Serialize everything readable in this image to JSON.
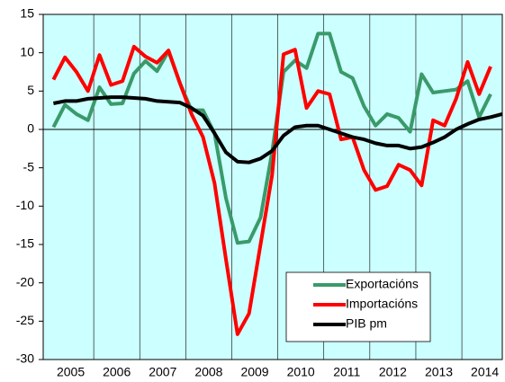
{
  "chart_data": {
    "type": "line",
    "categories": [
      null,
      "2005",
      null,
      null,
      null,
      "2006",
      null,
      null,
      null,
      "2007",
      null,
      null,
      null,
      "2008",
      null,
      null,
      null,
      "2009",
      null,
      null,
      null,
      "2010",
      null,
      null,
      null,
      "2011",
      null,
      null,
      null,
      "2012",
      null,
      null,
      null,
      "2013",
      null,
      null,
      null,
      "2014",
      null,
      null
    ],
    "series": [
      {
        "name": "Exportacións",
        "color": "#3a9a6a",
        "values": [
          0.3,
          3.2,
          2.0,
          1.2,
          5.5,
          3.3,
          3.4,
          7.3,
          8.9,
          7.6,
          10.2,
          6.0,
          2.5,
          2.5,
          -0.5,
          -9.0,
          -14.8,
          -14.6,
          -11.5,
          -3.0,
          7.5,
          9.0,
          8.0,
          12.5,
          12.5,
          7.5,
          6.7,
          3.0,
          0.5,
          2.0,
          1.5,
          -0.3,
          7.2,
          4.8,
          5.0,
          5.2,
          6.3,
          1.6,
          4.6,
          null
        ]
      },
      {
        "name": "Importacións",
        "color": "#ff0000",
        "values": [
          6.5,
          9.4,
          7.5,
          5.0,
          9.7,
          5.8,
          6.3,
          10.8,
          9.5,
          8.7,
          10.3,
          6.0,
          2.0,
          -1.0,
          -7.0,
          -17.0,
          -26.7,
          -24.0,
          -15.0,
          -6.0,
          9.8,
          10.4,
          2.8,
          5.0,
          4.6,
          -1.3,
          -1.0,
          -5.3,
          -7.9,
          -7.4,
          -4.6,
          -5.3,
          -7.3,
          1.2,
          0.5,
          4.0,
          8.8,
          4.6,
          8.2,
          null
        ]
      },
      {
        "name": "PIB pm",
        "color": "#000000",
        "values": [
          3.4,
          3.7,
          3.7,
          4.0,
          4.1,
          4.2,
          4.2,
          4.1,
          4.0,
          3.7,
          3.6,
          3.5,
          2.8,
          1.8,
          -0.5,
          -3.0,
          -4.2,
          -4.3,
          -3.8,
          -2.8,
          -0.8,
          0.3,
          0.5,
          0.5,
          0.0,
          -0.5,
          -1.0,
          -1.3,
          -1.8,
          -2.1,
          -2.1,
          -2.5,
          -2.3,
          -1.7,
          -1.0,
          0.0,
          0.7,
          1.3,
          1.6,
          2.0
        ]
      }
    ],
    "ylim": [
      -30,
      15
    ],
    "yticks": [
      15,
      10,
      5,
      0,
      -5,
      -10,
      -15,
      -20,
      -25,
      -30
    ],
    "background": "#ccffff",
    "legend": "lower-right"
  }
}
